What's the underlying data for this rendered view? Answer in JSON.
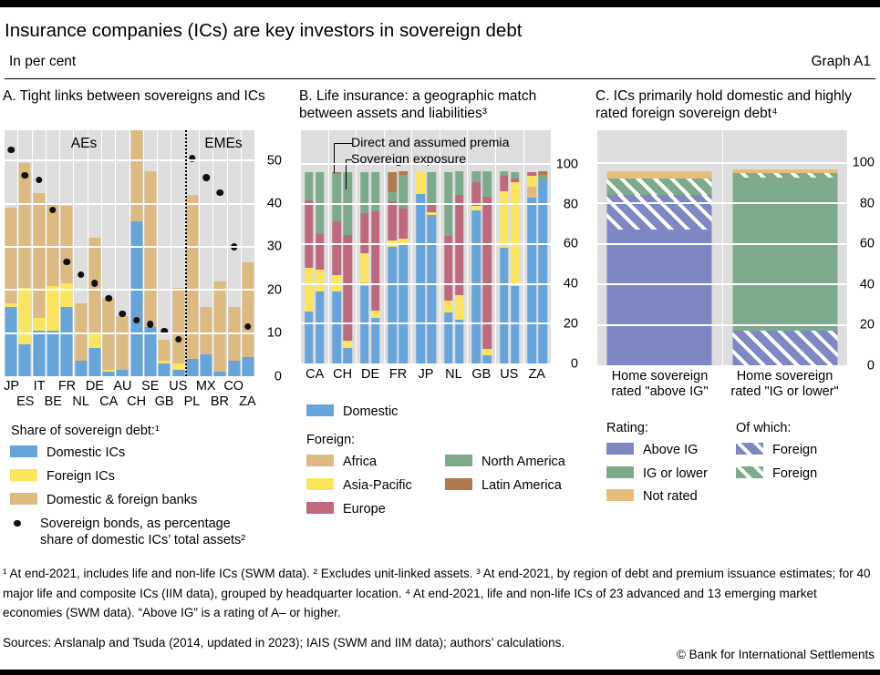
{
  "page": {
    "title": "Insurance companies (ICs) are key investors in sovereign debt",
    "subtitle_left": "In per cent",
    "graph_label": "Graph A1",
    "footnotes": "¹  At end-2021, includes life and non-life ICs (SWM data).   ²  Excludes unit-linked assets.   ³  At end-2021, by region of debt and premium issuance estimates; for 40 major life and composite ICs (IIM data), grouped by headquarter location.   ⁴  At end-2021, life and non-life ICs of 23 advanced and 13 emerging market economies (SWM data). “Above IG” is a rating of A– or higher.",
    "sources": "Sources: Arslanalp and Tsuda (2014, updated in 2023); IAIS (SWM and IIM data); authors’ calculations.",
    "copyright": "© Bank for International Settlements"
  },
  "colors": {
    "plot_bg": "#DEDEDE",
    "domestic_blue": "#67A4D9",
    "foreign_yellow": "#FAE55C",
    "banks_tan": "#DCBA82",
    "africa_tan": "#DCBA82",
    "asia_pacific_yellow": "#FAE55C",
    "europe_maroon": "#BE697E",
    "north_america_green": "#7EAA8C",
    "latin_america_brown": "#AD7A50",
    "above_ig_purple": "#7F87C3",
    "ig_or_lower_green": "#7EAA8C",
    "not_rated_tan": "#E5BE7B",
    "dot_black": "#111111"
  },
  "chart_data": [
    {
      "type": "bar",
      "panel": "A",
      "title": "A. Tight links between sovereigns and ICs",
      "ylim": [
        0,
        57
      ],
      "yticks": [
        0,
        10,
        20,
        30,
        40,
        50
      ],
      "grid": true,
      "group_labels": {
        "left": "AEs",
        "right": "EMEs"
      },
      "separator_after_bar": 13,
      "legend_heading": "Share of sovereign debt:¹",
      "series": [
        {
          "key": "domestic_ics",
          "label": "Domestic ICs",
          "color_key": "domestic_blue"
        },
        {
          "key": "foreign_ics",
          "label": "Foreign ICs",
          "color_key": "foreign_yellow"
        },
        {
          "key": "banks",
          "label": "Domestic & foreign banks",
          "color_key": "banks_tan"
        }
      ],
      "dot_series_label": "Sovereign bonds, as percentage share of domestic ICs’ total assets²",
      "bars": [
        {
          "label": "JP",
          "domestic_ics": 16,
          "foreign_ics": 1,
          "banks": 22,
          "dot": 52.5
        },
        {
          "label": "ES",
          "domestic_ics": 7.5,
          "foreign_ics": 13,
          "banks": 29,
          "dot": 46.5
        },
        {
          "label": "IT",
          "domestic_ics": 10.5,
          "foreign_ics": 3,
          "banks": 29,
          "dot": 45.5
        },
        {
          "label": "BE",
          "domestic_ics": 10.5,
          "foreign_ics": 10.5,
          "banks": 19,
          "dot": 38.5
        },
        {
          "label": "FR",
          "domestic_ics": 16,
          "foreign_ics": 5.5,
          "banks": 18,
          "dot": 26.5
        },
        {
          "label": "NL",
          "domestic_ics": 3.5,
          "foreign_ics": 0,
          "banks": 13.5,
          "dot": 23.5
        },
        {
          "label": "DE",
          "domestic_ics": 6.5,
          "foreign_ics": 3.5,
          "banks": 22,
          "dot": 21.5
        },
        {
          "label": "CA",
          "domestic_ics": 1,
          "foreign_ics": 0.5,
          "banks": 16.5,
          "dot": 18
        },
        {
          "label": "AU",
          "domestic_ics": 1.5,
          "foreign_ics": 0,
          "banks": 12.5,
          "dot": 14.5
        },
        {
          "label": "CH",
          "domestic_ics": 36,
          "foreign_ics": 0,
          "banks": 22,
          "dot": 13,
          "clipped_at_top": true
        },
        {
          "label": "SE",
          "domestic_ics": 11.5,
          "foreign_ics": 0,
          "banks": 36,
          "dot": 12
        },
        {
          "label": "GB",
          "domestic_ics": 3,
          "foreign_ics": 0.5,
          "banks": 5,
          "dot": 10.5
        },
        {
          "label": "US",
          "domestic_ics": 1.5,
          "foreign_ics": 1.5,
          "banks": 17.5,
          "dot": 8.5
        },
        {
          "label": "PL",
          "domestic_ics": 4,
          "foreign_ics": 0,
          "banks": 38,
          "dot": 50.5
        },
        {
          "label": "MX",
          "domestic_ics": 5,
          "foreign_ics": 0,
          "banks": 11,
          "dot": 46
        },
        {
          "label": "BR",
          "domestic_ics": 1,
          "foreign_ics": 0,
          "banks": 21,
          "dot": 42.5
        },
        {
          "label": "CO",
          "domestic_ics": 3.5,
          "foreign_ics": 0,
          "banks": 12.5,
          "dot": 30
        },
        {
          "label": "ZA",
          "domestic_ics": 4.5,
          "foreign_ics": 0,
          "banks": 22,
          "dot": 11.5
        }
      ]
    },
    {
      "type": "bar",
      "panel": "B",
      "title": "B. Life insurance: a geographic match between assets and liabilities³",
      "ylim": [
        0,
        117
      ],
      "yticks": [
        0,
        20,
        40,
        60,
        80,
        100
      ],
      "grid": true,
      "bar_annotations": {
        "first": "Direct and assumed premia",
        "second": "Sovereign exposure"
      },
      "legend_domestic": {
        "label": "Domestic",
        "color_key": "domestic_blue"
      },
      "legend_foreign_heading": "Foreign:",
      "series": [
        {
          "key": "domestic",
          "color_key": "domestic_blue"
        },
        {
          "key": "africa",
          "label": "Africa",
          "color_key": "africa_tan"
        },
        {
          "key": "asia_pacific",
          "label": "Asia-Pacific",
          "color_key": "asia_pacific_yellow"
        },
        {
          "key": "europe",
          "label": "Europe",
          "color_key": "europe_maroon"
        },
        {
          "key": "north_america",
          "label": "North America",
          "color_key": "north_america_green"
        },
        {
          "key": "latin_america",
          "label": "Latin America",
          "color_key": "latin_america_brown"
        }
      ],
      "pairs": [
        {
          "label": "CA",
          "premia": {
            "domestic": 26,
            "asia_pacific": 22,
            "europe": 34,
            "north_america": 14
          },
          "sovereign": {
            "domestic": 36,
            "asia_pacific": 11,
            "europe": 18,
            "north_america": 31
          }
        },
        {
          "label": "CH",
          "premia": {
            "domestic": 36,
            "asia_pacific": 8.5,
            "europe": 27,
            "north_america": 23.5,
            "latin_america": 1
          },
          "sovereign": {
            "domestic": 8,
            "asia_pacific": 3.5,
            "europe": 53,
            "north_america": 31.5
          }
        },
        {
          "label": "DE",
          "premia": {
            "domestic": 39,
            "africa": 1.5,
            "asia_pacific": 15,
            "europe": 20,
            "north_america": 20.5
          },
          "sovereign": {
            "domestic": 23,
            "asia_pacific": 3.5,
            "europe": 50,
            "north_america": 19.5
          }
        },
        {
          "label": "FR",
          "premia": {
            "domestic": 58.5,
            "asia_pacific": 3,
            "europe": 20,
            "north_america": 4.5,
            "latin_america": 10
          },
          "sovereign": {
            "domestic": 60,
            "asia_pacific": 2.5,
            "europe": 15,
            "north_america": 17,
            "latin_america": 2
          }
        },
        {
          "label": "JP",
          "premia": {
            "domestic": 85,
            "asia_pacific": 11
          },
          "sovereign": {
            "domestic": 74.5,
            "asia_pacific": 1.5,
            "europe": 4.5,
            "north_america": 15.5
          }
        },
        {
          "label": "NL",
          "premia": {
            "domestic": 25.5,
            "asia_pacific": 6,
            "europe": 32.5,
            "north_america": 32
          },
          "sovereign": {
            "domestic": 22,
            "asia_pacific": 12.5,
            "europe": 50,
            "north_america": 12
          }
        },
        {
          "label": "GB",
          "premia": {
            "domestic": 77,
            "asia_pacific": 2,
            "europe": 12,
            "north_america": 5.5
          },
          "sovereign": {
            "domestic": 4,
            "asia_pacific": 3.5,
            "europe": 76,
            "north_america": 13
          }
        },
        {
          "label": "US",
          "premia": {
            "domestic": 58,
            "asia_pacific": 28.5,
            "europe": 7.5,
            "north_america": 2.5
          },
          "sovereign": {
            "domestic": 39,
            "asia_pacific": 52,
            "europe": 2,
            "north_america": 3
          }
        },
        {
          "label": "ZA",
          "premia": {
            "domestic": 83,
            "africa": 5.5,
            "asia_pacific": 5.5,
            "europe": 2
          },
          "sovereign": {
            "domestic": 92,
            "north_america": 2.5,
            "latin_america": 2
          }
        }
      ]
    },
    {
      "type": "bar",
      "panel": "C",
      "title": "C. ICs primarily hold domestic and highly rated foreign sovereign debt⁴",
      "ylim": [
        0,
        116
      ],
      "yticks": [
        0,
        20,
        40,
        60,
        80,
        100
      ],
      "grid": true,
      "legend": {
        "rating_heading": "Rating:",
        "rating_items": [
          {
            "label": "Above IG",
            "color_key": "above_ig_purple",
            "hatched": false
          },
          {
            "label": "IG or lower",
            "color_key": "ig_or_lower_green",
            "hatched": false
          },
          {
            "label": "Not rated",
            "color_key": "not_rated_tan",
            "hatched": false
          }
        ],
        "of_which_heading": "Of which:",
        "of_which_items": [
          {
            "label": "Foreign",
            "color_key": "above_ig_purple",
            "hatched": true
          },
          {
            "label": "Foreign",
            "color_key": "ig_or_lower_green",
            "hatched": true
          }
        ]
      },
      "bars": [
        {
          "label_lines": [
            "Home sovereign",
            "rated \"above IG\""
          ],
          "segments": [
            {
              "name": "above_ig_domestic",
              "color_key": "above_ig_purple",
              "hatched": false,
              "value": 67
            },
            {
              "name": "above_ig_foreign",
              "color_key": "above_ig_purple",
              "hatched": true,
              "value": 17
            },
            {
              "name": "ig_or_lower_foreign",
              "color_key": "ig_or_lower_green",
              "hatched": true,
              "value": 8
            },
            {
              "name": "not_rated",
              "color_key": "not_rated_tan",
              "hatched": false,
              "value": 4
            }
          ]
        },
        {
          "label_lines": [
            "Home sovereign",
            "rated \"IG or lower\""
          ],
          "segments": [
            {
              "name": "above_ig_foreign",
              "color_key": "above_ig_purple",
              "hatched": true,
              "value": 17
            },
            {
              "name": "ig_or_lower_domestic",
              "color_key": "ig_or_lower_green",
              "hatched": false,
              "value": 75.5
            },
            {
              "name": "ig_or_lower_foreign",
              "color_key": "ig_or_lower_green",
              "hatched": true,
              "value": 2.5
            },
            {
              "name": "not_rated",
              "color_key": "not_rated_tan",
              "hatched": false,
              "value": 1.5
            }
          ]
        }
      ]
    }
  ]
}
